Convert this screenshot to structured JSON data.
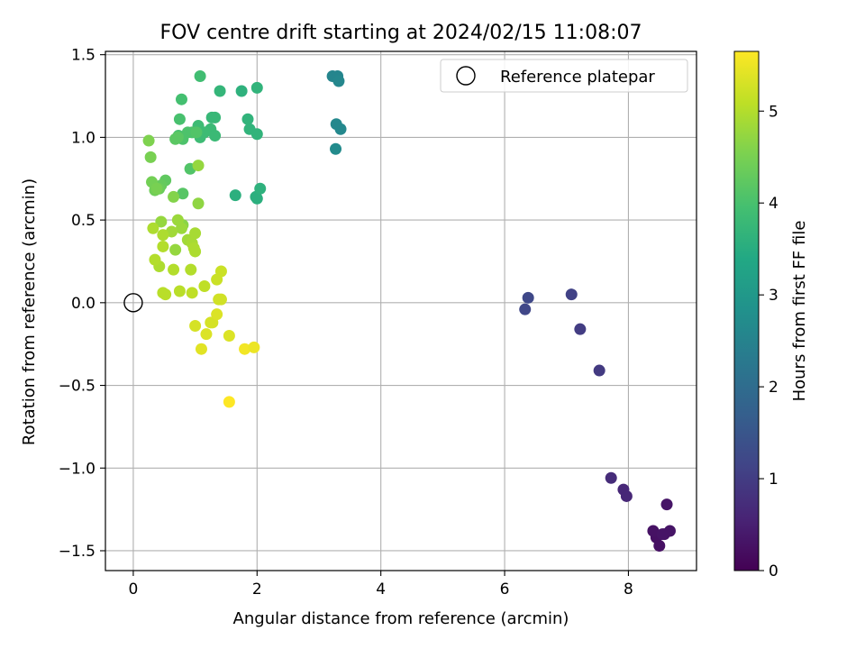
{
  "chart_data": {
    "type": "scatter",
    "title": "FOV centre drift starting at 2024/02/15 11:08:07",
    "xlabel": "Angular distance from reference (arcmin)",
    "ylabel": "Rotation from reference (arcmin)",
    "xlim": [
      -0.45,
      9.1
    ],
    "ylim": [
      -1.62,
      1.52
    ],
    "xticks": [
      0,
      2,
      4,
      6,
      8
    ],
    "xtick_labels": [
      "0",
      "2",
      "4",
      "6",
      "8"
    ],
    "yticks": [
      -1.5,
      -1.0,
      -0.5,
      0.0,
      0.5,
      1.0,
      1.5
    ],
    "ytick_labels": [
      "−1.5",
      "−1.0",
      "−0.5",
      "0.0",
      "0.5",
      "1.0",
      "1.5"
    ],
    "grid": true,
    "legend": {
      "position": "top-right",
      "entries": [
        {
          "label": "Reference platepar",
          "marker": "open-circle"
        }
      ]
    },
    "reference_point": {
      "x": 0,
      "y": 0
    },
    "colorbar": {
      "label": "Hours from first FF file",
      "colormap": "viridis",
      "range": [
        0,
        5.65
      ],
      "ticks": [
        0,
        1,
        2,
        3,
        4,
        5
      ],
      "tick_labels": [
        "0",
        "1",
        "2",
        "3",
        "4",
        "5"
      ]
    },
    "series": [
      {
        "x": [
          8.45,
          8.5,
          8.58,
          8.67,
          8.4,
          8.62,
          8.55,
          7.92,
          7.97,
          7.72,
          7.53,
          7.22,
          7.08,
          6.38,
          6.33,
          3.22,
          3.3,
          3.32,
          3.28,
          3.35,
          3.27,
          1.65,
          2.0,
          1.98,
          2.05,
          1.75,
          1.85,
          1.88,
          2.0,
          2.0,
          1.4,
          1.32,
          1.27,
          1.25,
          1.32,
          1.15,
          1.08,
          1.05,
          1.08,
          0.78,
          0.75,
          0.73,
          0.8,
          0.88,
          0.95,
          1.02,
          0.92,
          0.8,
          0.68,
          0.72,
          0.52,
          0.45,
          0.42,
          0.35,
          0.3,
          0.38,
          0.28,
          0.25,
          0.65,
          0.8,
          1.05,
          1.05,
          0.45,
          0.68,
          0.78,
          0.72,
          0.88,
          0.62,
          1.0,
          0.95,
          0.98,
          1.0,
          0.32,
          0.48,
          0.42,
          0.48,
          0.35,
          0.65,
          0.93,
          0.48,
          0.52,
          0.75,
          0.95,
          1.15,
          1.42,
          1.35,
          1.38,
          1.42,
          1.28,
          1.0,
          1.25,
          1.18,
          1.55,
          1.35,
          1.1,
          1.8,
          1.95,
          1.55
        ],
        "y": [
          -1.42,
          -1.47,
          -1.4,
          -1.38,
          -1.38,
          -1.22,
          -1.4,
          -1.13,
          -1.17,
          -1.06,
          -0.41,
          -0.16,
          0.05,
          0.03,
          -0.04,
          1.37,
          1.37,
          1.34,
          1.08,
          1.05,
          0.93,
          0.65,
          0.63,
          0.64,
          0.69,
          1.28,
          1.11,
          1.05,
          1.02,
          1.3,
          1.28,
          1.12,
          1.12,
          1.05,
          1.01,
          1.03,
          1.0,
          1.07,
          1.37,
          1.23,
          1.11,
          1.01,
          0.99,
          1.03,
          1.03,
          1.03,
          0.81,
          0.66,
          0.99,
          1.0,
          0.74,
          0.71,
          0.69,
          0.68,
          0.73,
          0.69,
          0.88,
          0.98,
          0.64,
          0.47,
          0.6,
          0.83,
          0.49,
          0.32,
          0.45,
          0.5,
          0.38,
          0.43,
          0.42,
          0.36,
          0.33,
          0.31,
          0.45,
          0.41,
          0.22,
          0.34,
          0.26,
          0.2,
          0.2,
          0.06,
          0.05,
          0.07,
          0.06,
          0.1,
          0.19,
          0.14,
          0.02,
          0.02,
          -0.12,
          -0.14,
          -0.12,
          -0.19,
          -0.2,
          -0.07,
          -0.28,
          -0.28,
          -0.27,
          -0.6
        ],
        "c": [
          0.25,
          0.25,
          0.27,
          0.3,
          0.28,
          0.32,
          0.3,
          0.62,
          0.62,
          0.7,
          0.95,
          1.0,
          1.1,
          1.22,
          1.2,
          2.55,
          2.55,
          2.6,
          2.62,
          2.62,
          2.7,
          3.55,
          3.55,
          3.55,
          3.6,
          3.6,
          3.65,
          3.65,
          3.65,
          3.65,
          3.7,
          3.75,
          3.75,
          3.8,
          3.8,
          3.85,
          3.85,
          3.85,
          3.9,
          3.95,
          4.0,
          4.0,
          4.05,
          4.05,
          4.05,
          4.1,
          4.1,
          4.15,
          4.2,
          4.2,
          4.25,
          4.3,
          4.35,
          4.4,
          4.45,
          4.5,
          4.5,
          4.55,
          4.6,
          4.65,
          4.7,
          4.75,
          4.75,
          4.75,
          4.8,
          4.8,
          4.85,
          4.85,
          4.9,
          4.9,
          4.95,
          4.95,
          4.95,
          4.95,
          4.95,
          5.0,
          5.0,
          5.0,
          5.0,
          5.05,
          5.05,
          5.05,
          5.1,
          5.1,
          5.2,
          5.2,
          5.25,
          5.25,
          5.3,
          5.3,
          5.3,
          5.35,
          5.35,
          5.35,
          5.4,
          5.55,
          5.5,
          5.65
        ]
      }
    ]
  }
}
